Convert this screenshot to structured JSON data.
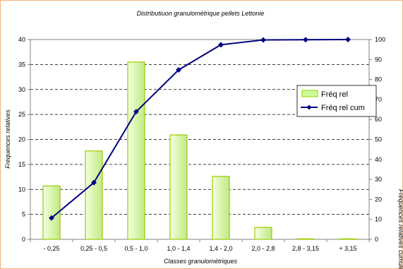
{
  "chart_data": {
    "type": "bar",
    "title": "Distributiuon granulométrique pellets Lettonie",
    "xlabel": "Classes granulométriques",
    "ylabel": "Fréquences relatives",
    "y2label": "Fréquences relatives cumulées",
    "categories": [
      "- 0,25",
      "0,25 - 0,5",
      "0,5 - 1,0",
      "1,0 - 1,4",
      "1,4 - 2,0",
      "2,0 - 2,8",
      "2,8 - 3,15",
      "+ 3,15"
    ],
    "ylim": [
      0,
      40
    ],
    "y2lim": [
      0,
      100
    ],
    "yticks": [
      "0",
      "5",
      "10",
      "15",
      "20",
      "25",
      "30",
      "35",
      "40"
    ],
    "y2ticks": [
      "0",
      "10",
      "20",
      "30",
      "40",
      "50",
      "60",
      "70",
      "80",
      "90",
      "100"
    ],
    "grid": "horizontal dashed",
    "legend_position": "right",
    "series": [
      {
        "name": "Fréq rel",
        "type": "bar",
        "axis": "left",
        "values": [
          10.7,
          17.7,
          35.5,
          20.9,
          12.6,
          2.4,
          0.1,
          0.1
        ],
        "color": "#ccff99",
        "edge_color": "#99cc00"
      },
      {
        "name": "Fréq rel cum",
        "type": "line",
        "axis": "right",
        "values": [
          10.7,
          28.4,
          63.9,
          84.8,
          97.4,
          99.8,
          99.9,
          100
        ],
        "color": "#000080"
      }
    ]
  }
}
